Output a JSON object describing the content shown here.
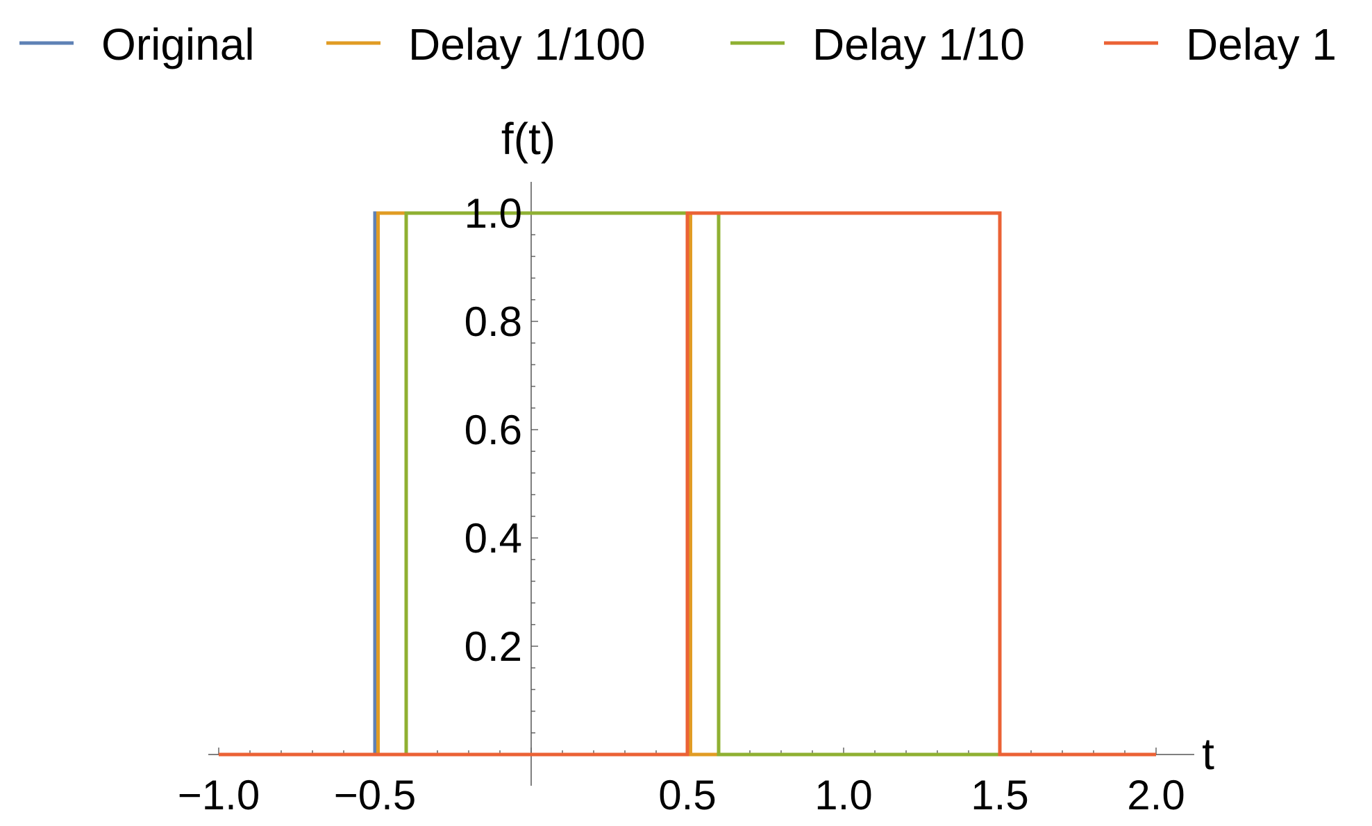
{
  "chart_data": {
    "type": "line",
    "title": "",
    "xlabel": "t",
    "ylabel": "f(t)",
    "xlim": [
      -1.0,
      2.0
    ],
    "ylim": [
      0,
      1.0
    ],
    "x_ticks": [
      "−1.0",
      "−0.5",
      "0.5",
      "1.0",
      "1.5",
      "2.0"
    ],
    "y_ticks": [
      "0.2",
      "0.4",
      "0.6",
      "0.8",
      "1.0"
    ],
    "grid": false,
    "legend_position": "top",
    "series": [
      {
        "name": "Original",
        "color": "#5e81b5",
        "x": [
          -1.0,
          -0.5,
          -0.5,
          0.5,
          0.5,
          2.0
        ],
        "y": [
          0,
          0,
          1,
          1,
          0,
          0
        ]
      },
      {
        "name": "Delay 1/100",
        "color": "#e19c24",
        "x": [
          -1.0,
          -0.49,
          -0.49,
          0.51,
          0.51,
          2.0
        ],
        "y": [
          0,
          0,
          1,
          1,
          0,
          0
        ]
      },
      {
        "name": "Delay 1/10",
        "color": "#8fb032",
        "x": [
          -1.0,
          -0.4,
          -0.4,
          0.6,
          0.6,
          2.0
        ],
        "y": [
          0,
          0,
          1,
          1,
          0,
          0
        ]
      },
      {
        "name": "Delay 1",
        "color": "#eb6235",
        "x": [
          -1.0,
          0.5,
          0.5,
          1.5,
          1.5,
          2.0
        ],
        "y": [
          0,
          0,
          1,
          1,
          0,
          0
        ]
      }
    ]
  }
}
